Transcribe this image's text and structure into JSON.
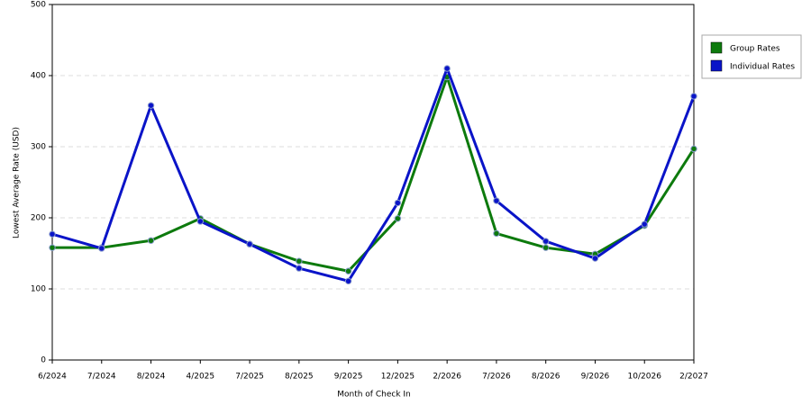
{
  "chart_data": {
    "type": "line",
    "x_label": "Month of Check In",
    "y_label": "Lowest Average Rate (USD)",
    "categories": [
      "6/2024",
      "7/2024",
      "8/2024",
      "4/2025",
      "7/2025",
      "8/2025",
      "9/2025",
      "12/2025",
      "2/2026",
      "7/2026",
      "8/2026",
      "9/2026",
      "10/2026",
      "2/2027"
    ],
    "series": [
      {
        "name": "Group Rates",
        "color": "#0d7a0d",
        "values": [
          158,
          158,
          168,
          199,
          163,
          139,
          125,
          199,
          398,
          178,
          158,
          149,
          189,
          297
        ]
      },
      {
        "name": "Individual Rates",
        "color": "#0a14c8",
        "values": [
          177,
          157,
          358,
          195,
          163,
          129,
          111,
          221,
          410,
          224,
          167,
          143,
          191,
          371
        ]
      }
    ],
    "ylim": [
      0,
      500
    ],
    "yticks": [
      0,
      100,
      200,
      300,
      400,
      500
    ],
    "grid": true,
    "legend": "right"
  }
}
